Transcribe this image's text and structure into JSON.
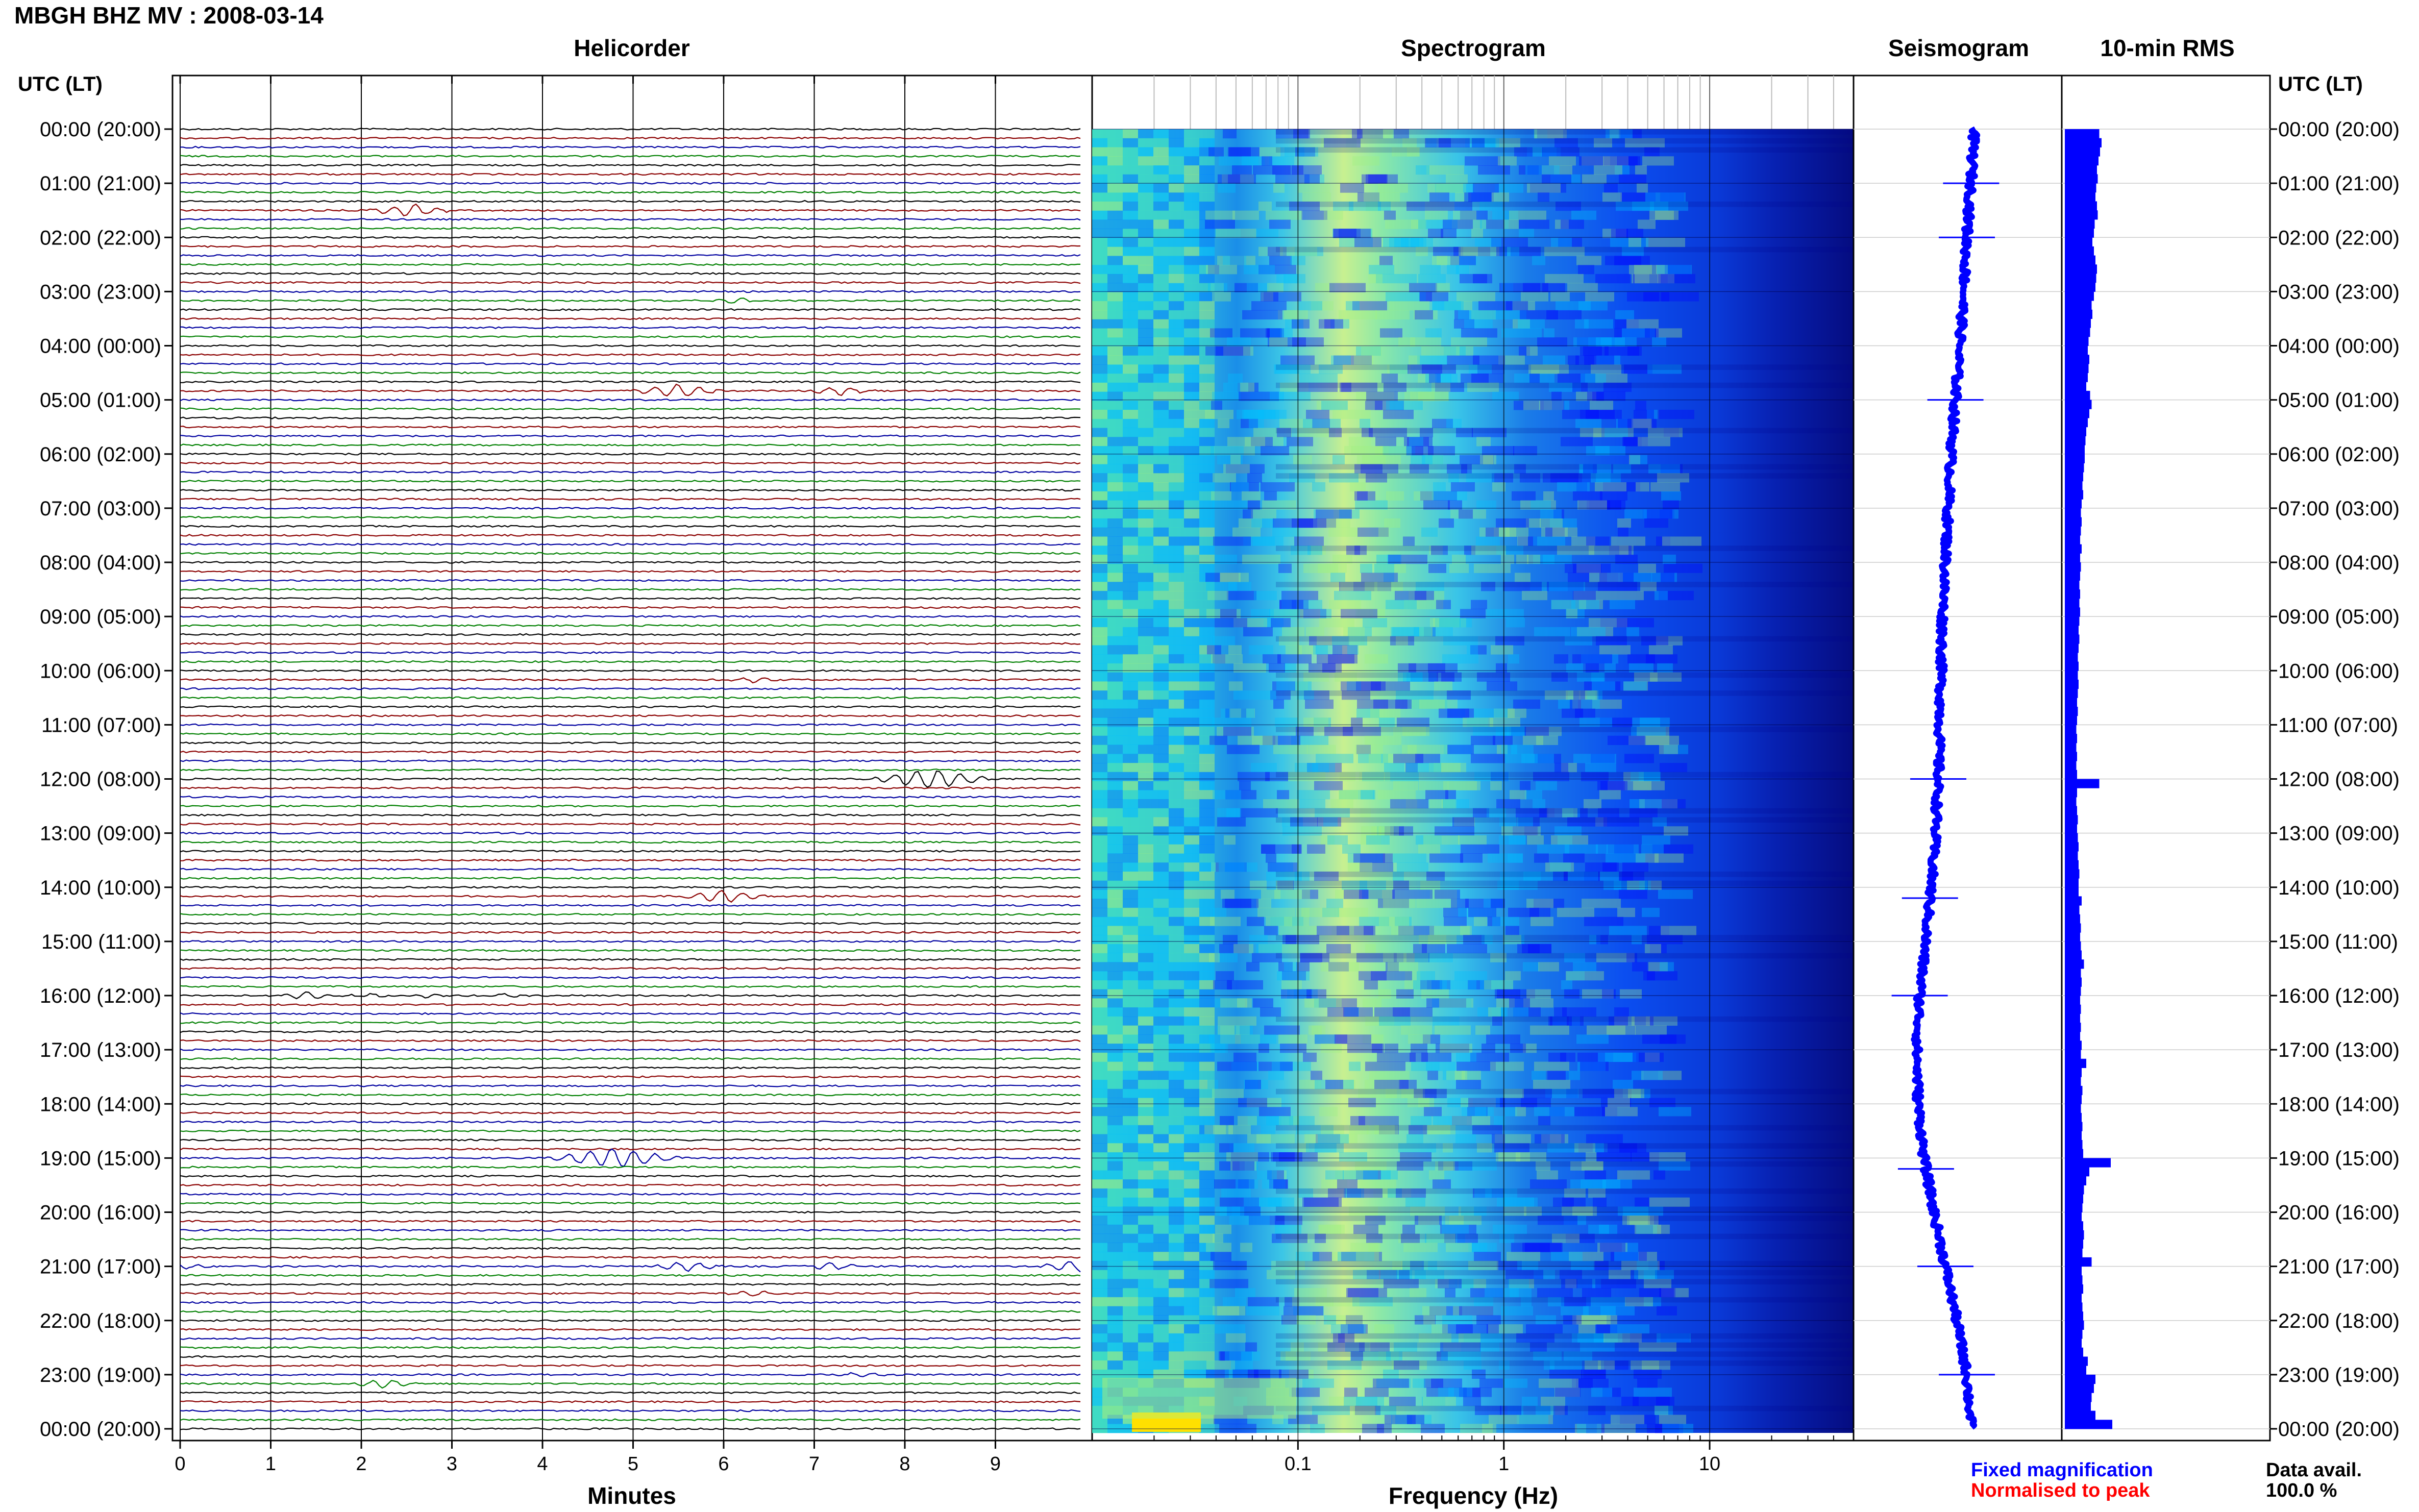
{
  "header": {
    "station_title": "MBGH BHZ MV : 2008-03-14",
    "left_axis_title": "UTC (LT)",
    "right_axis_title": "UTC (LT)"
  },
  "panels": {
    "helicorder": "Helicorder",
    "spectrogram": "Spectrogram",
    "seismogram": "Seismogram",
    "rms": "10-min RMS"
  },
  "xlabels": {
    "helicorder": "Minutes",
    "spectrogram": "Frequency (Hz)"
  },
  "footer": {
    "fixed_magnification": "Fixed magnification",
    "normalised_to_peak": "Normalised to peak",
    "data_avail_label": "Data avail.",
    "data_avail_value": "100.0 %"
  },
  "colors": {
    "trace_cycle": [
      "#000000",
      "#8b0000",
      "#0000a0",
      "#008000"
    ],
    "seismogram": "#0000ff",
    "rms": "#0000ff",
    "fixed_magnification": "#0000ff",
    "normalised_to_peak": "#ff0000"
  },
  "time_labels": [
    "00:00 (20:00)",
    "01:00 (21:00)",
    "02:00 (22:00)",
    "03:00 (23:00)",
    "04:00 (00:00)",
    "05:00 (01:00)",
    "06:00 (02:00)",
    "07:00 (03:00)",
    "08:00 (04:00)",
    "09:00 (05:00)",
    "10:00 (06:00)",
    "11:00 (07:00)",
    "12:00 (08:00)",
    "13:00 (09:00)",
    "14:00 (10:00)",
    "15:00 (11:00)",
    "16:00 (12:00)",
    "17:00 (13:00)",
    "18:00 (14:00)",
    "19:00 (15:00)",
    "20:00 (16:00)",
    "21:00 (17:00)",
    "22:00 (18:00)",
    "23:00 (19:00)",
    "00:00 (20:00)"
  ],
  "chart_data": [
    {
      "type": "line",
      "panel": "Helicorder",
      "xlabel": "Minutes",
      "x_ticks": [
        "0",
        "1",
        "2",
        "3",
        "4",
        "5",
        "6",
        "7",
        "8",
        "9"
      ],
      "xlim": [
        0,
        10
      ],
      "traces_per_hour": 6,
      "trace_count": 144,
      "events": [
        {
          "row": 9,
          "minute": 2.55,
          "strength": 0.9
        },
        {
          "row": 29,
          "minute": 5.5,
          "strength": 1.0
        },
        {
          "row": 29,
          "minute": 7.3,
          "strength": 0.6
        },
        {
          "row": 19,
          "minute": 6.1,
          "strength": 0.4
        },
        {
          "row": 61,
          "minute": 6.3,
          "strength": 0.4
        },
        {
          "row": 72,
          "minute": 8.3,
          "strength": 1.4
        },
        {
          "row": 85,
          "minute": 6.0,
          "strength": 0.9
        },
        {
          "row": 96,
          "minute": 1.4,
          "strength": 0.6
        },
        {
          "row": 96,
          "minute": 2.1,
          "strength": 0.3
        },
        {
          "row": 96,
          "minute": 2.75,
          "strength": 0.3
        },
        {
          "row": 96,
          "minute": 3.55,
          "strength": 0.3
        },
        {
          "row": 114,
          "minute": 4.8,
          "strength": 1.5
        },
        {
          "row": 126,
          "minute": 0.05,
          "strength": 0.4
        },
        {
          "row": 126,
          "minute": 5.6,
          "strength": 0.7
        },
        {
          "row": 126,
          "minute": 7.2,
          "strength": 0.5
        },
        {
          "row": 126,
          "minute": 9.9,
          "strength": 0.8
        },
        {
          "row": 129,
          "minute": 6.3,
          "strength": 0.5
        },
        {
          "row": 139,
          "minute": 2.25,
          "strength": 0.6
        },
        {
          "row": 138,
          "minute": 7.5,
          "strength": 0.4
        }
      ]
    },
    {
      "type": "heatmap",
      "panel": "Spectrogram",
      "xlabel": "Frequency (Hz)",
      "x_scale": "log",
      "xlim": [
        0.01,
        50
      ],
      "x_tick_labels": [
        "0.1",
        "1",
        "10"
      ],
      "x_tick_values": [
        0.1,
        1,
        10
      ],
      "colormap": [
        "#00008b",
        "#0000ff",
        "#0080ff",
        "#00c0ff",
        "#40e0c0",
        "#a0f080",
        "#ffe000"
      ]
    },
    {
      "type": "line",
      "panel": "Seismogram",
      "xlabel": "",
      "description_values_hourly_offset": [
        0.1,
        0.08,
        0.05,
        0.03,
        0.0,
        -0.03,
        -0.06,
        -0.08,
        -0.1,
        -0.12,
        -0.13,
        -0.14,
        -0.15,
        -0.17,
        -0.2,
        -0.24,
        -0.28,
        -0.3,
        -0.29,
        -0.25,
        -0.18,
        -0.1,
        -0.02,
        0.05,
        0.08
      ],
      "spikes_hour": [
        1.0,
        2.0,
        5.0,
        12.0,
        14.2,
        16.0,
        19.2,
        21.0,
        23.0
      ]
    },
    {
      "type": "bar",
      "panel": "10-min RMS",
      "orientation": "horizontal",
      "values_10min": [
        0.45,
        0.48,
        0.46,
        0.44,
        0.42,
        0.43,
        0.41,
        0.4,
        0.42,
        0.43,
        0.39,
        0.38,
        0.36,
        0.38,
        0.4,
        0.42,
        0.41,
        0.4,
        0.38,
        0.35,
        0.36,
        0.34,
        0.33,
        0.31,
        0.3,
        0.32,
        0.31,
        0.3,
        0.28,
        0.33,
        0.35,
        0.32,
        0.3,
        0.28,
        0.27,
        0.26,
        0.26,
        0.25,
        0.24,
        0.23,
        0.24,
        0.22,
        0.21,
        0.22,
        0.21,
        0.2,
        0.22,
        0.2,
        0.21,
        0.2,
        0.19,
        0.2,
        0.19,
        0.2,
        0.19,
        0.18,
        0.19,
        0.18,
        0.17,
        0.18,
        0.17,
        0.18,
        0.17,
        0.16,
        0.17,
        0.16,
        0.15,
        0.16,
        0.15,
        0.16,
        0.15,
        0.16,
        0.45,
        0.16,
        0.15,
        0.16,
        0.17,
        0.16,
        0.17,
        0.18,
        0.17,
        0.18,
        0.19,
        0.18,
        0.18,
        0.22,
        0.19,
        0.2,
        0.21,
        0.2,
        0.21,
        0.22,
        0.25,
        0.21,
        0.22,
        0.21,
        0.2,
        0.21,
        0.2,
        0.21,
        0.2,
        0.22,
        0.21,
        0.28,
        0.22,
        0.21,
        0.23,
        0.22,
        0.21,
        0.22,
        0.23,
        0.22,
        0.23,
        0.24,
        0.6,
        0.32,
        0.28,
        0.25,
        0.24,
        0.23,
        0.22,
        0.24,
        0.25,
        0.24,
        0.23,
        0.35,
        0.22,
        0.23,
        0.24,
        0.22,
        0.23,
        0.24,
        0.25,
        0.23,
        0.22,
        0.24,
        0.3,
        0.28,
        0.4,
        0.38,
        0.35,
        0.34,
        0.4,
        0.62
      ]
    }
  ]
}
